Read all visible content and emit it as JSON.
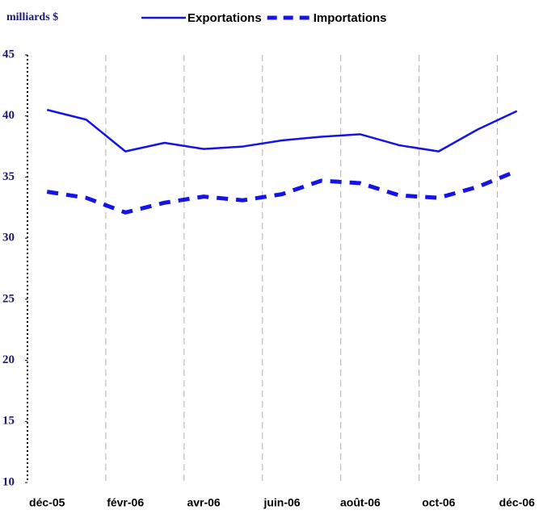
{
  "chart_data": {
    "type": "line",
    "y_label": "milliards $",
    "categories": [
      "déc-05",
      null,
      "févr-06",
      null,
      "avr-06",
      null,
      "juin-06",
      null,
      "août-06",
      null,
      "oct-06",
      null,
      "déc-06"
    ],
    "series": [
      {
        "name": "Exportations",
        "color": "#1414e6",
        "dash": false,
        "values": [
          40.5,
          39.7,
          37.1,
          37.8,
          37.3,
          37.5,
          38.0,
          38.3,
          38.5,
          37.6,
          37.1,
          38.9,
          40.4
        ]
      },
      {
        "name": "Importations",
        "color": "#1414e6",
        "dash": true,
        "values": [
          33.8,
          33.3,
          32.1,
          32.9,
          33.4,
          33.1,
          33.6,
          34.7,
          34.5,
          33.5,
          33.3,
          34.2,
          35.5
        ]
      }
    ],
    "ylim": [
      10,
      45
    ],
    "yticks": [
      10,
      15,
      20,
      25,
      30,
      35,
      40,
      45
    ],
    "grid": true,
    "legend": "top"
  }
}
